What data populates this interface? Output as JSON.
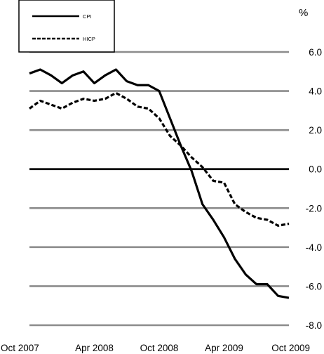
{
  "chart_data": {
    "type": "line",
    "title": "",
    "xlabel": "",
    "ylabel": "%",
    "ylim": [
      -8.0,
      6.0
    ],
    "y_ticks": [
      "6.0",
      "4.0",
      "2.0",
      "0.0",
      "-2.0",
      "-4.0",
      "-6.0",
      "-8.0"
    ],
    "x_ticks": [
      "Oct 2007",
      "Apr 2008",
      "Oct 2008",
      "Apr 2009",
      "Oct 2009"
    ],
    "legend_position": "top-left",
    "grid": true,
    "x": [
      "Oct 2007",
      "Nov 2007",
      "Dec 2007",
      "Jan 2008",
      "Feb 2008",
      "Mar 2008",
      "Apr 2008",
      "May 2008",
      "Jun 2008",
      "Jul 2008",
      "Aug 2008",
      "Sep 2008",
      "Oct 2008",
      "Nov 2008",
      "Dec 2008",
      "Jan 2009",
      "Feb 2009",
      "Mar 2009",
      "Apr 2009",
      "May 2009",
      "Jun 2009",
      "Jul 2009",
      "Aug 2009",
      "Sep 2009",
      "Oct 2009"
    ],
    "series": [
      {
        "name": "CPI",
        "style": "solid",
        "color": "#000000",
        "values": [
          4.9,
          5.1,
          4.8,
          4.4,
          4.8,
          5.0,
          4.4,
          4.8,
          5.1,
          4.5,
          4.3,
          4.3,
          4.0,
          2.6,
          1.2,
          -0.1,
          -1.8,
          -2.6,
          -3.5,
          -4.6,
          -5.4,
          -5.9,
          -5.9,
          -6.5,
          -6.6
        ]
      },
      {
        "name": "HICP",
        "style": "dashed",
        "color": "#000000",
        "values": [
          3.1,
          3.5,
          3.3,
          3.1,
          3.4,
          3.6,
          3.5,
          3.6,
          3.9,
          3.6,
          3.2,
          3.1,
          2.6,
          1.7,
          1.2,
          0.6,
          0.1,
          -0.6,
          -0.7,
          -1.8,
          -2.2,
          -2.5,
          -2.6,
          -2.9,
          -2.8
        ]
      }
    ]
  }
}
